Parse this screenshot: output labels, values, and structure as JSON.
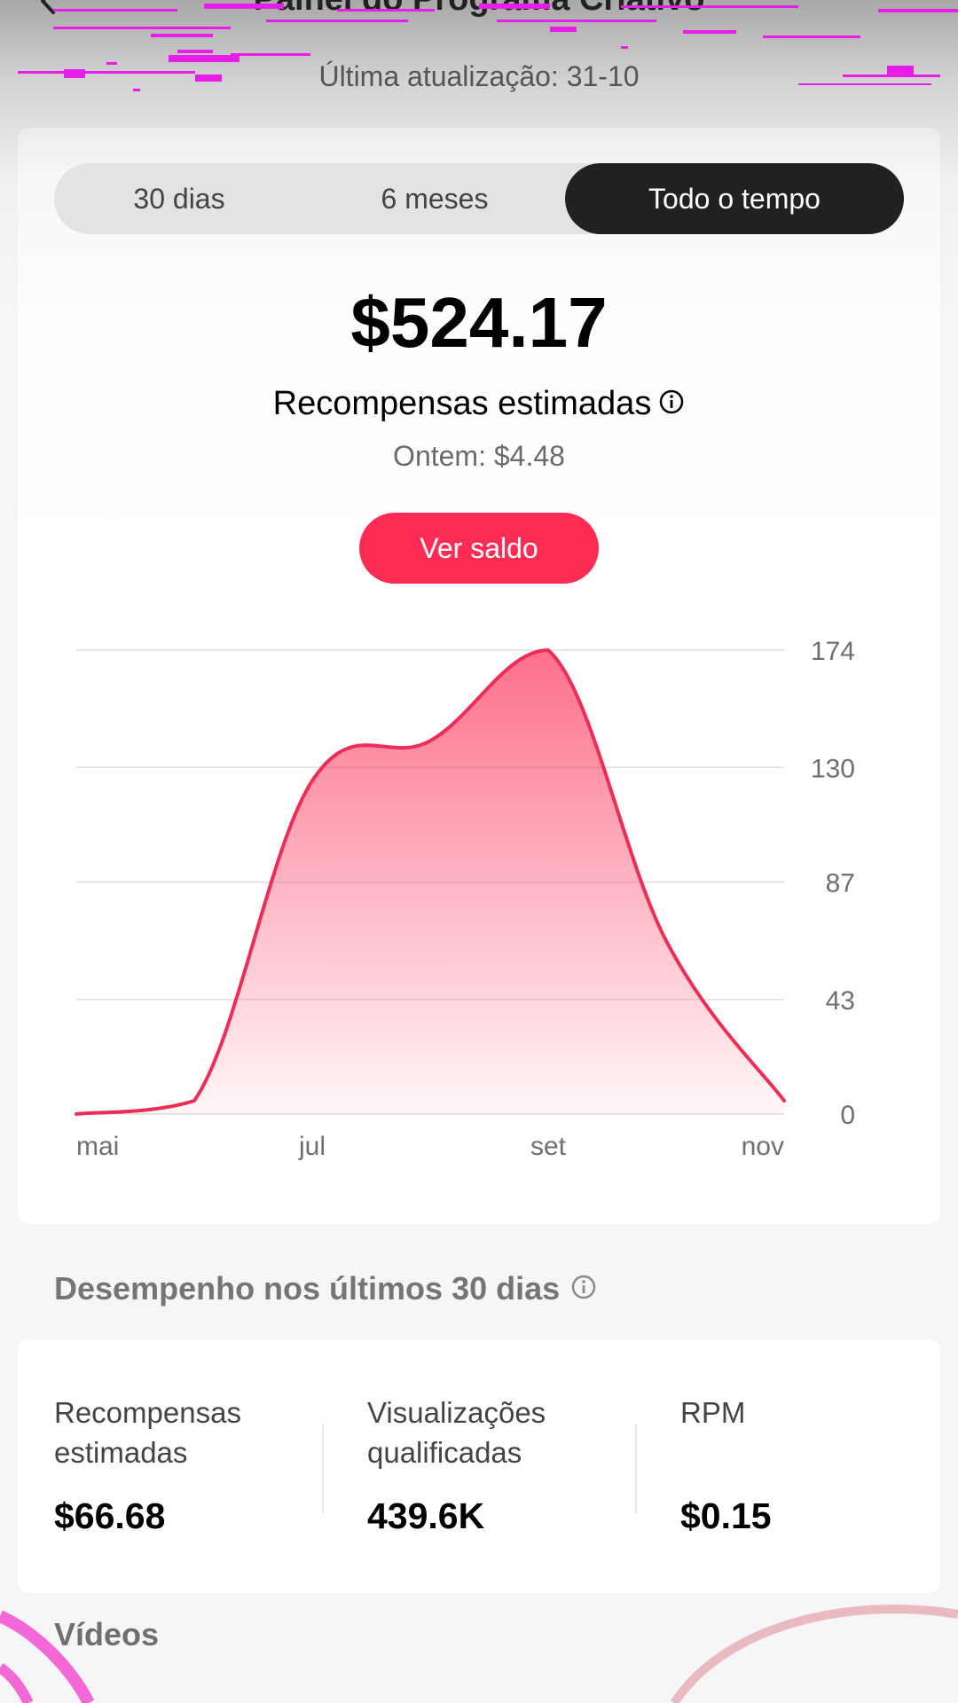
{
  "header": {
    "title": "Painel do Programa Criativo",
    "last_updated": "Última atualização: 31-10"
  },
  "period_tabs": [
    {
      "label": "30 dias",
      "selected": false
    },
    {
      "label": "6 meses",
      "selected": false
    },
    {
      "label": "Todo o tempo",
      "selected": true
    }
  ],
  "summary": {
    "total": "$524.17",
    "label": "Recompensas estimadas",
    "yesterday": "Ontem: $4.48",
    "balance_button": "Ver saldo"
  },
  "chart_data": {
    "type": "area",
    "x_labels": [
      "mai",
      "jul",
      "set",
      "nov"
    ],
    "y_ticks": [
      0,
      43,
      87,
      130,
      174
    ],
    "ylim": [
      0,
      174
    ],
    "grid": true,
    "y_axis_position": "right",
    "color": "#ee2d55",
    "series": [
      {
        "points": [
          [
            "mai",
            0
          ],
          [
            "jun",
            5
          ],
          [
            "jul",
            125
          ],
          [
            "ago",
            140
          ],
          [
            "set",
            174
          ],
          [
            "out",
            65
          ],
          [
            "nov",
            5
          ]
        ]
      }
    ]
  },
  "performance": {
    "title": "Desempenho nos últimos 30 dias",
    "stats": [
      {
        "label": "Recompensas estimadas",
        "value": "$66.68"
      },
      {
        "label": "Visualizações qualificadas",
        "value": "439.6K"
      },
      {
        "label": "RPM",
        "value": "$0.15"
      }
    ]
  },
  "videos": {
    "title": "Vídeos"
  },
  "colors": {
    "accent": "#fe2c55",
    "selected_tab": "#212121",
    "chart_line": "#ee2d55"
  }
}
